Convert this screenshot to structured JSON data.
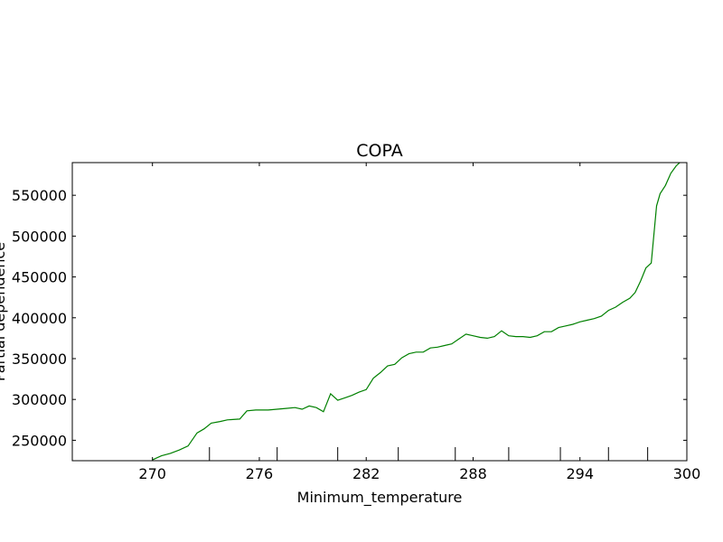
{
  "chart_data": {
    "type": "line",
    "title": "COPA",
    "xlabel": "Minimum_temperature",
    "ylabel": "Partial dependence",
    "xlim": [
      265.5,
      300
    ],
    "ylim": [
      225000,
      590000
    ],
    "x_ticks": [
      270,
      276,
      282,
      288,
      294,
      300
    ],
    "y_ticks": [
      250000,
      300000,
      350000,
      400000,
      450000,
      500000,
      550000
    ],
    "y_tick_labels": [
      "250000",
      "300000",
      "350000",
      "400000",
      "450000",
      "500000",
      "550000"
    ],
    "rug_x": [
      273.2,
      277.0,
      280.4,
      283.8,
      287.0,
      290.0,
      292.9,
      295.6,
      297.8
    ],
    "grid": false,
    "line_color": "#008000",
    "series": [
      {
        "x": [
          270.0,
          270.5,
          271.0,
          271.5,
          272.0,
          272.5,
          272.9,
          273.3,
          273.8,
          274.2,
          274.9,
          275.3,
          275.8,
          276.5,
          277.0,
          277.5,
          278.0,
          278.4,
          278.8,
          279.2,
          279.6,
          280.0,
          280.4,
          280.8,
          281.2,
          281.6,
          282.0,
          282.4,
          282.8,
          283.2,
          283.6,
          284.0,
          284.4,
          284.8,
          285.2,
          285.6,
          286.0,
          286.4,
          286.8,
          287.2,
          287.6,
          288.0,
          288.4,
          288.8,
          289.2,
          289.6,
          290.0,
          290.4,
          290.8,
          291.2,
          291.6,
          292.0,
          292.4,
          292.8,
          293.2,
          293.6,
          294.0,
          294.4,
          294.8,
          295.2,
          295.6,
          296.0,
          296.4,
          296.8,
          297.1,
          297.4,
          297.7,
          298.0,
          298.3,
          298.5,
          298.8,
          299.1,
          299.4,
          299.6
        ],
        "values": [
          226000,
          231000,
          234000,
          238000,
          243000,
          259000,
          264000,
          271000,
          273000,
          275000,
          276000,
          286000,
          287000,
          287000,
          288000,
          289000,
          290000,
          288000,
          292000,
          290000,
          285000,
          307000,
          299000,
          302000,
          305000,
          309000,
          312000,
          326000,
          333000,
          341000,
          343000,
          351000,
          356000,
          358000,
          358000,
          363000,
          364000,
          366000,
          368000,
          374000,
          380000,
          378000,
          376000,
          375000,
          377000,
          384000,
          378000,
          377000,
          377000,
          376000,
          378000,
          383000,
          383000,
          388000,
          390000,
          392000,
          395000,
          397000,
          399000,
          402000,
          409000,
          413000,
          419000,
          424000,
          431000,
          445000,
          461000,
          467000,
          537000,
          552000,
          562000,
          577000,
          586000,
          590000
        ]
      }
    ]
  }
}
